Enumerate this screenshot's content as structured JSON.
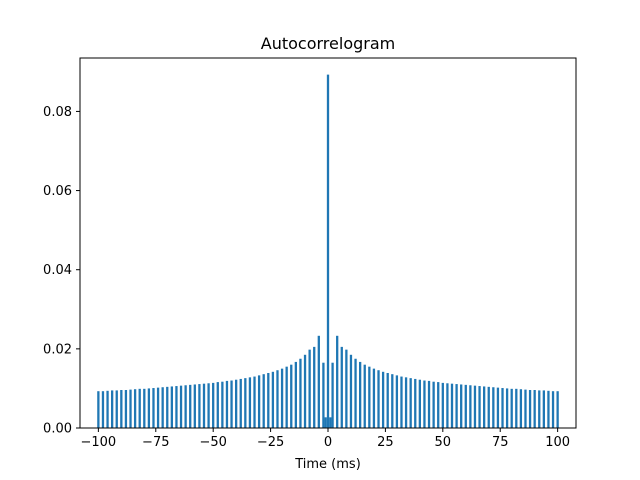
{
  "chart_data": {
    "type": "bar",
    "title": "Autocorrelogram",
    "xlabel": "Time (ms)",
    "ylabel": "",
    "xlim": [
      -108,
      108
    ],
    "ylim": [
      0,
      0.0935
    ],
    "bar_width": 1.0,
    "color": "#1f77b4",
    "grid": false,
    "legend": "none",
    "x_ticks": [
      -100,
      -75,
      -50,
      -25,
      0,
      25,
      50,
      75,
      100
    ],
    "x_tick_labels": [
      "−100",
      "−75",
      "−50",
      "−25",
      "0",
      "25",
      "50",
      "75",
      "100"
    ],
    "y_ticks": [
      0,
      0.02,
      0.04,
      0.06,
      0.08
    ],
    "y_tick_labels": [
      "0.00",
      "0.02",
      "0.04",
      "0.06",
      "0.08"
    ],
    "x": [
      -100,
      -98,
      -96,
      -94,
      -92,
      -90,
      -88,
      -86,
      -84,
      -82,
      -80,
      -78,
      -76,
      -74,
      -72,
      -70,
      -68,
      -66,
      -64,
      -62,
      -60,
      -58,
      -56,
      -54,
      -52,
      -50,
      -48,
      -46,
      -44,
      -42,
      -40,
      -38,
      -36,
      -34,
      -32,
      -30,
      -28,
      -26,
      -24,
      -22,
      -20,
      -18,
      -16,
      -14,
      -12,
      -10,
      -8,
      -6,
      -4,
      -2,
      0,
      2,
      4,
      6,
      8,
      10,
      12,
      14,
      16,
      18,
      20,
      22,
      24,
      26,
      28,
      30,
      32,
      34,
      36,
      38,
      40,
      42,
      44,
      46,
      48,
      50,
      52,
      54,
      56,
      58,
      60,
      62,
      64,
      66,
      68,
      70,
      72,
      74,
      76,
      78,
      80,
      82,
      84,
      86,
      88,
      90,
      92,
      94,
      96,
      98,
      100
    ],
    "values": [
      0.0093,
      0.0093,
      0.0094,
      0.0095,
      0.0095,
      0.0096,
      0.0096,
      0.0097,
      0.0098,
      0.0099,
      0.0099,
      0.01,
      0.0101,
      0.0102,
      0.0103,
      0.0104,
      0.0105,
      0.0106,
      0.0107,
      0.0108,
      0.0109,
      0.011,
      0.0111,
      0.0112,
      0.0113,
      0.0114,
      0.0116,
      0.0117,
      0.0119,
      0.012,
      0.0122,
      0.0124,
      0.0126,
      0.0128,
      0.013,
      0.0133,
      0.0136,
      0.0139,
      0.0142,
      0.0146,
      0.015,
      0.0155,
      0.016,
      0.0167,
      0.0175,
      0.0185,
      0.0198,
      0.0205,
      0.0233,
      0.0165,
      0.0893,
      0.0165,
      0.0233,
      0.0205,
      0.0198,
      0.0185,
      0.0175,
      0.0167,
      0.016,
      0.0155,
      0.015,
      0.0146,
      0.0142,
      0.0139,
      0.0136,
      0.0133,
      0.013,
      0.0128,
      0.0126,
      0.0124,
      0.0122,
      0.012,
      0.0119,
      0.0117,
      0.0116,
      0.0114,
      0.0113,
      0.0112,
      0.0111,
      0.011,
      0.0109,
      0.0108,
      0.0107,
      0.0106,
      0.0105,
      0.0104,
      0.0103,
      0.0102,
      0.0101,
      0.01,
      0.0099,
      0.0099,
      0.0098,
      0.0097,
      0.0096,
      0.0096,
      0.0095,
      0.0095,
      0.0094,
      0.0093,
      0.0093
    ],
    "extra_bars": {
      "x": [
        -1,
        1
      ],
      "values": [
        0.0027,
        0.0027
      ]
    }
  }
}
